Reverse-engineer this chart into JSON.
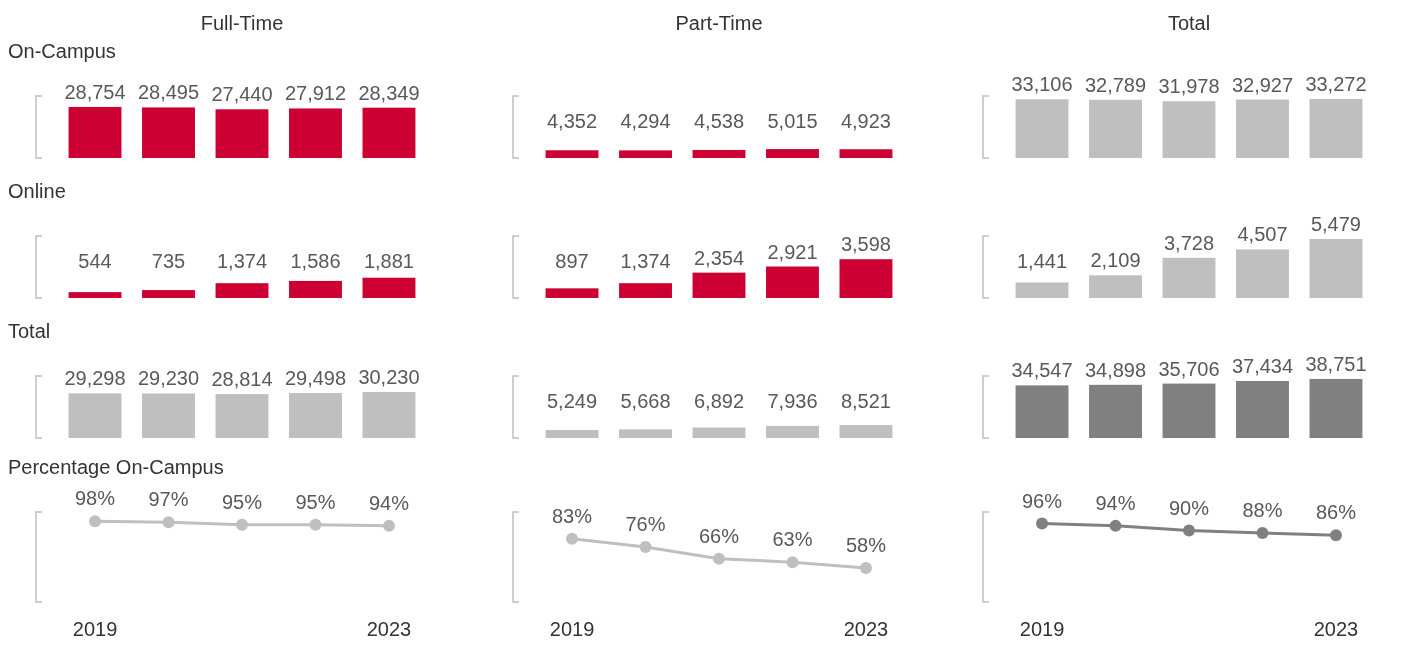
{
  "chart_data": [
    {
      "type": "bar",
      "title": "Full-Time",
      "subtitle": "On-Campus",
      "categories": [
        null,
        null,
        null,
        null,
        null
      ],
      "values": [
        28754,
        28495,
        27440,
        27912,
        28349
      ],
      "value_labels": [
        "28,754",
        "28,495",
        "27,440",
        "27,912",
        "28,349"
      ],
      "color": "#cc0033",
      "tick_labels": false
    },
    {
      "type": "bar",
      "title": "Part-Time",
      "categories": [
        null,
        null,
        null,
        null,
        null
      ],
      "values": [
        4352,
        4294,
        4538,
        5015,
        4923
      ],
      "value_labels": [
        "4,352",
        "4,294",
        "4,538",
        "5,015",
        "4,923"
      ],
      "color": "#cc0033",
      "tick_labels": false
    },
    {
      "type": "bar",
      "title": "Total",
      "categories": [
        null,
        null,
        null,
        null,
        null
      ],
      "values": [
        33106,
        32789,
        31978,
        32927,
        33272
      ],
      "value_labels": [
        "33,106",
        "32,789",
        "31,978",
        "32,927",
        "33,272"
      ],
      "color": "#bfbfbf",
      "tick_labels": false
    },
    {
      "type": "bar",
      "subtitle": "Online",
      "categories": [
        null,
        null,
        null,
        null,
        null
      ],
      "values": [
        544,
        735,
        1374,
        1586,
        1881
      ],
      "value_labels": [
        "544",
        "735",
        "1,374",
        "1,586",
        "1,881"
      ],
      "color": "#cc0033",
      "tick_labels": false
    },
    {
      "type": "bar",
      "categories": [
        null,
        null,
        null,
        null,
        null
      ],
      "values": [
        897,
        1374,
        2354,
        2921,
        3598
      ],
      "value_labels": [
        "897",
        "1,374",
        "2,354",
        "2,921",
        "3,598"
      ],
      "color": "#cc0033",
      "tick_labels": false
    },
    {
      "type": "bar",
      "categories": [
        null,
        null,
        null,
        null,
        null
      ],
      "values": [
        1441,
        2109,
        3728,
        4507,
        5479
      ],
      "value_labels": [
        "1,441",
        "2,109",
        "3,728",
        "4,507",
        "5,479"
      ],
      "color": "#bfbfbf",
      "tick_labels": false
    },
    {
      "type": "bar",
      "subtitle": "Total",
      "categories": [
        null,
        null,
        null,
        null,
        null
      ],
      "values": [
        29298,
        29230,
        28814,
        29498,
        30230
      ],
      "value_labels": [
        "29,298",
        "29,230",
        "28,814",
        "29,498",
        "30,230"
      ],
      "color": "#bfbfbf",
      "tick_labels": false
    },
    {
      "type": "bar",
      "categories": [
        null,
        null,
        null,
        null,
        null
      ],
      "values": [
        5249,
        5668,
        6892,
        7936,
        8521
      ],
      "value_labels": [
        "5,249",
        "5,668",
        "6,892",
        "7,936",
        "8,521"
      ],
      "color": "#bfbfbf",
      "tick_labels": false
    },
    {
      "type": "bar",
      "categories": [
        null,
        null,
        null,
        null,
        null
      ],
      "values": [
        34547,
        34898,
        35706,
        37434,
        38751
      ],
      "value_labels": [
        "34,547",
        "34,898",
        "35,706",
        "37,434",
        "38,751"
      ],
      "color": "#808080",
      "tick_labels": false
    },
    {
      "type": "line",
      "subtitle": "Percentage On-Campus",
      "categories": [
        "2019",
        null,
        null,
        null,
        "2023"
      ],
      "values": [
        98,
        97,
        95,
        95,
        94
      ],
      "value_labels": [
        "98%",
        "97%",
        "95%",
        "95%",
        "94%"
      ],
      "color": "#bfbfbf",
      "marker": "circle",
      "tick_labels": "x"
    },
    {
      "type": "line",
      "categories": [
        "2019",
        null,
        null,
        null,
        "2023"
      ],
      "values": [
        83,
        76,
        66,
        63,
        58
      ],
      "value_labels": [
        "83%",
        "76%",
        "66%",
        "63%",
        "58%"
      ],
      "color": "#bfbfbf",
      "marker": "circle",
      "tick_labels": "x"
    },
    {
      "type": "line",
      "categories": [
        "2019",
        null,
        null,
        null,
        "2023"
      ],
      "values": [
        96,
        94,
        90,
        88,
        86
      ],
      "value_labels": [
        "96%",
        "94%",
        "90%",
        "88%",
        "86%"
      ],
      "color": "#808080",
      "marker": "circle",
      "tick_labels": "x"
    }
  ]
}
